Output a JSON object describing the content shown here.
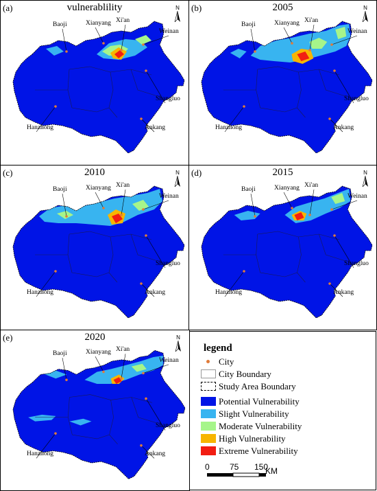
{
  "panels": [
    {
      "label": "(a)",
      "title": "vulnerablility",
      "variant": "a"
    },
    {
      "label": "(b)",
      "title": "2005",
      "variant": "b"
    },
    {
      "label": "(c)",
      "title": "2010",
      "variant": "c"
    },
    {
      "label": "(d)",
      "title": "2015",
      "variant": "d"
    },
    {
      "label": "(e)",
      "title": "2020",
      "variant": "e"
    }
  ],
  "cities": [
    "Baoji",
    "Xianyang",
    "Xi'an",
    "Weinan",
    "Shangluo",
    "Hanzhong",
    "Ankang"
  ],
  "north_label": "N",
  "legend": {
    "title": "legend",
    "items": [
      {
        "label": "City",
        "kind": "dot",
        "color": "#e07b39"
      },
      {
        "label": "City Boundary",
        "kind": "box"
      },
      {
        "label": "Study Area Boundary",
        "kind": "dashbox"
      },
      {
        "label": "Potential Vulnerability",
        "kind": "fill",
        "color": "#0014e6"
      },
      {
        "label": "Slight Vulnerability",
        "kind": "fill",
        "color": "#38b4f0"
      },
      {
        "label": "Moderate Vulnerability",
        "kind": "fill",
        "color": "#a6f58a"
      },
      {
        "label": "High Vulnerability",
        "kind": "fill",
        "color": "#f7b500"
      },
      {
        "label": "Extreme Vulnerability",
        "kind": "fill",
        "color": "#f21d12"
      }
    ],
    "scale": {
      "ticks": [
        "0",
        "75",
        "150"
      ],
      "unit": "KM"
    }
  }
}
